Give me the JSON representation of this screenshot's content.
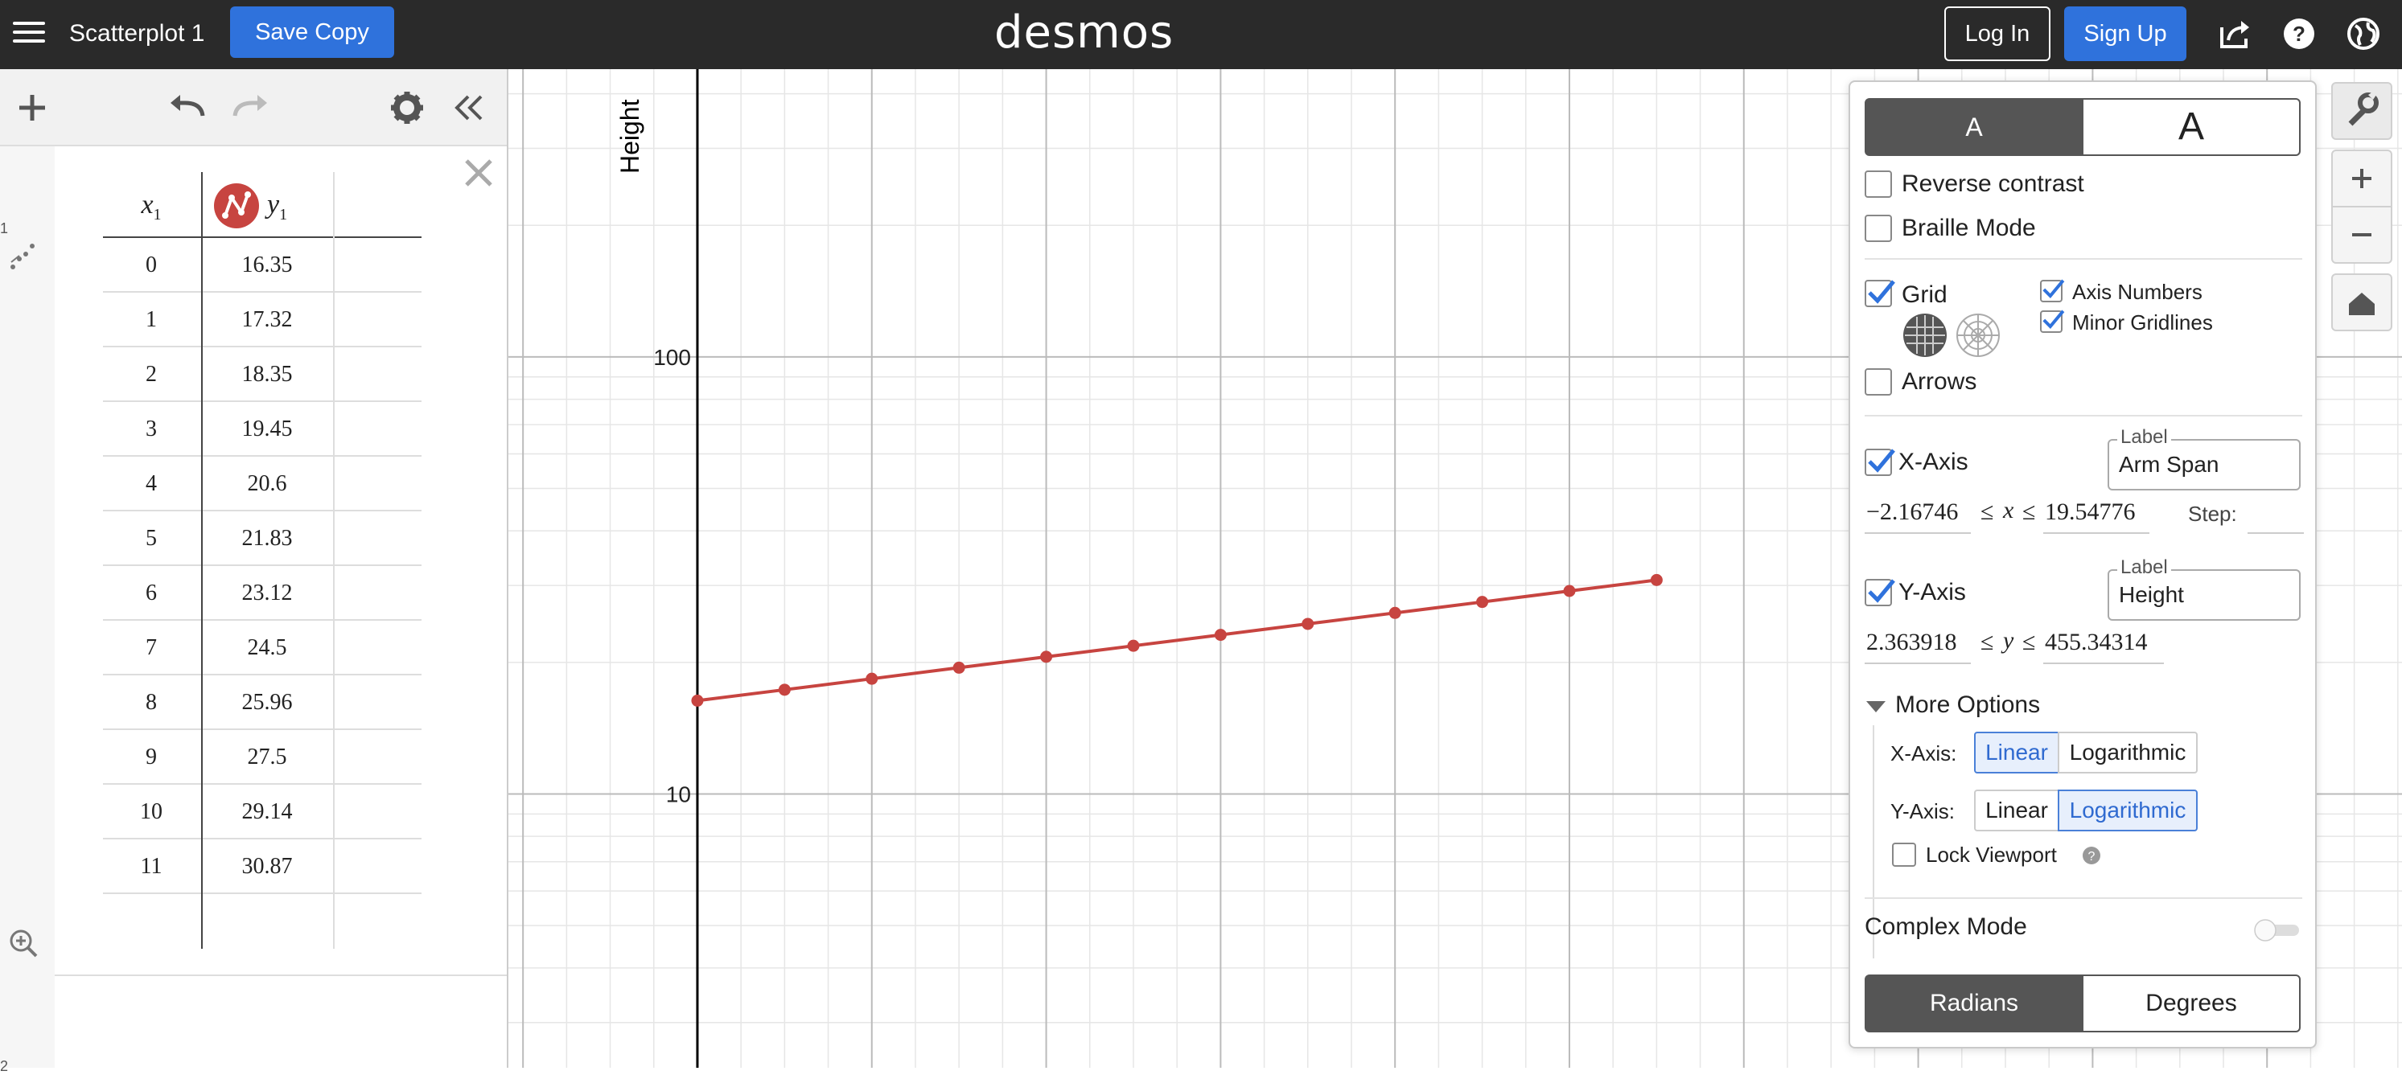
{
  "header": {
    "title": "Scatterplot 1",
    "save_copy": "Save Copy",
    "logo": "desmos",
    "login": "Log In",
    "signup": "Sign Up"
  },
  "expressions": {
    "gutter_numbers": [
      "1",
      "2"
    ],
    "table": {
      "x_header": "x",
      "x_sub": "1",
      "y_header": "y",
      "y_sub": "1",
      "x": [
        "0",
        "1",
        "2",
        "3",
        "4",
        "5",
        "6",
        "7",
        "8",
        "9",
        "10",
        "11"
      ],
      "y": [
        "16.35",
        "17.32",
        "18.35",
        "19.45",
        "20.6",
        "21.83",
        "23.12",
        "24.5",
        "25.96",
        "27.5",
        "29.14",
        "30.87"
      ],
      "series_color": "#c74440"
    }
  },
  "graph": {
    "y_axis_label": "Height",
    "tick_labels": [
      "100",
      "10"
    ],
    "axis_color": "#000000",
    "grid_major_color": "#bbbbbb",
    "grid_minor_color": "#e6e6e6"
  },
  "chart_data": {
    "type": "scatter",
    "connected": true,
    "x": [
      0,
      1,
      2,
      3,
      4,
      5,
      6,
      7,
      8,
      9,
      10,
      11
    ],
    "y": [
      16.35,
      17.32,
      18.35,
      19.45,
      20.6,
      21.83,
      23.12,
      24.5,
      25.96,
      27.5,
      29.14,
      30.87
    ],
    "xlabel": "Arm Span",
    "ylabel": "Height",
    "xlim": [
      -2.16746,
      19.54776
    ],
    "ylim": [
      2.363918,
      455.34314
    ],
    "yscale": "log",
    "xscale": "linear",
    "grid": true,
    "minor_gridlines": true,
    "color": "#c74440"
  },
  "settings": {
    "text_size_small": "A",
    "text_size_large": "A",
    "reverse_contrast": "Reverse contrast",
    "braille_mode": "Braille Mode",
    "grid": "Grid",
    "axis_numbers": "Axis Numbers",
    "minor_gridlines": "Minor Gridlines",
    "arrows": "Arrows",
    "x_axis": "X-Axis",
    "y_axis": "Y-Axis",
    "label_title": "Label",
    "x_label_value": "Arm Span",
    "y_label_value": "Height",
    "x_min": "−2.16746",
    "x_max": "19.54776",
    "x_var": "x",
    "y_min": "2.363918",
    "y_max": "455.34314",
    "y_var": "y",
    "leq": "≤",
    "step": "Step:",
    "more_options": "More Options",
    "x_axis_scale_label": "X-Axis:",
    "y_axis_scale_label": "Y-Axis:",
    "linear": "Linear",
    "logarithmic": "Logarithmic",
    "lock_viewport": "Lock Viewport",
    "complex_mode": "Complex Mode",
    "radians": "Radians",
    "degrees": "Degrees",
    "accent_color": "#2f72dc"
  }
}
